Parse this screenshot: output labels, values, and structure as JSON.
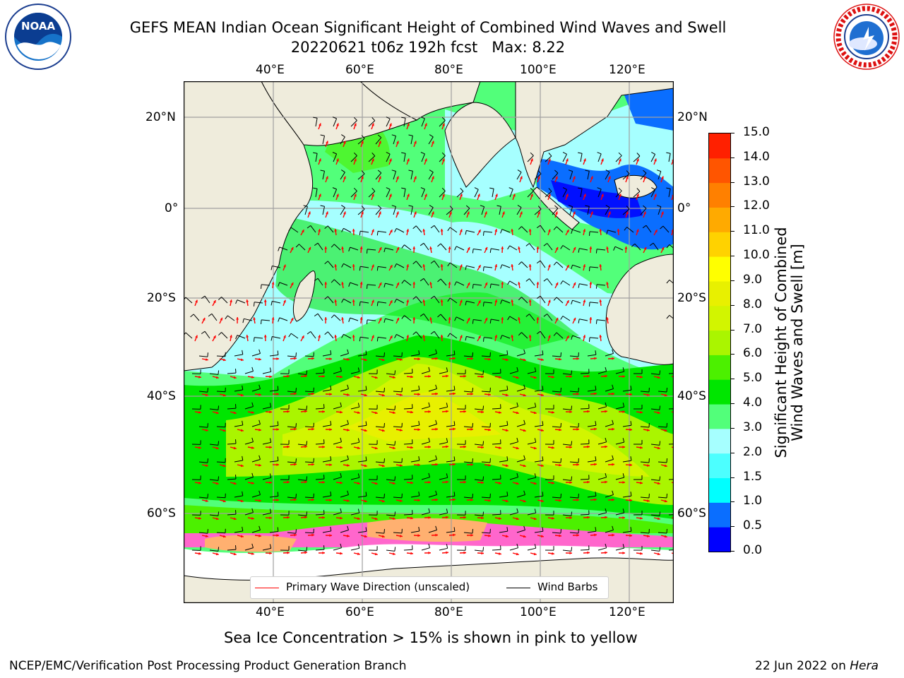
{
  "title": {
    "line1": "GEFS MEAN Indian Ocean Significant Height of Combined Wind Waves and Swell",
    "line2": "20220621 t06z 192h fcst   Max: 8.22"
  },
  "map": {
    "lon_ticks_top": [
      "40°E",
      "60°E",
      "80°E",
      "100°E",
      "120°E"
    ],
    "lon_ticks_bottom": [
      "40°E",
      "60°E",
      "80°E",
      "100°E",
      "120°E"
    ],
    "lat_ticks_left": [
      "20°N",
      "0°",
      "20°S",
      "40°S",
      "60°S"
    ],
    "lat_ticks_right": [
      "20°N",
      "0°",
      "20°S",
      "40°S",
      "60°S"
    ],
    "land_color": "#efecdc",
    "ice_note": "Sea Ice Concentration > 15% is shown in pink to yellow"
  },
  "legend": {
    "wave_direction": "Primary Wave Direction (unscaled)",
    "wind_barbs": "Wind Barbs",
    "wave_color": "#ff0000",
    "barb_color": "#000000"
  },
  "colorbar": {
    "label_line1": "Significant Height of Combined",
    "label_line2": "Wind Waves and Swell [m]",
    "ticks": [
      "0.0",
      "0.5",
      "1.0",
      "1.5",
      "2.0",
      "3.0",
      "4.0",
      "5.0",
      "6.0",
      "7.0",
      "8.0",
      "9.0",
      "10.0",
      "11.0",
      "12.0",
      "13.0",
      "14.0",
      "15.0"
    ],
    "colors": [
      "#0000ff",
      "#0a6eff",
      "#00ffff",
      "#4cffff",
      "#a6ffff",
      "#52ff7a",
      "#00e600",
      "#4cf000",
      "#aaf500",
      "#d2f500",
      "#e8f000",
      "#ffff00",
      "#ffd200",
      "#ffaa00",
      "#ff8000",
      "#ff5500",
      "#ff2000"
    ]
  },
  "logos": {
    "noaa": "NOAA",
    "nws": "NATIONAL WEATHER SERVICE"
  },
  "footer": {
    "left": "NCEP/EMC/Verification Post Processing Product Generation Branch",
    "right_prefix": "22 Jun 2022 on ",
    "right_host": "Hera"
  }
}
